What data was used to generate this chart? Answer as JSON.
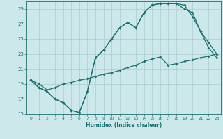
{
  "title": "",
  "xlabel": "Humidex (Indice chaleur)",
  "bg_color": "#cce8ea",
  "grid_color": "#aacccc",
  "line_color": "#1a7070",
  "xlim": [
    -0.5,
    23.5
  ],
  "ylim": [
    15,
    30
  ],
  "yticks": [
    15,
    17,
    19,
    21,
    23,
    25,
    27,
    29
  ],
  "xticks": [
    0,
    1,
    2,
    3,
    4,
    5,
    6,
    7,
    8,
    9,
    10,
    11,
    12,
    13,
    14,
    15,
    16,
    17,
    18,
    19,
    20,
    21,
    22,
    23
  ],
  "line1_x": [
    0,
    1,
    2,
    3,
    4,
    5,
    6,
    7,
    8,
    9,
    10,
    11,
    12,
    13,
    14,
    15,
    16,
    17,
    18,
    19,
    20,
    21,
    22,
    23
  ],
  "line1_y": [
    19.5,
    18.5,
    18.0,
    17.0,
    16.5,
    15.5,
    15.2,
    18.0,
    22.5,
    23.5,
    25.0,
    26.5,
    27.2,
    26.5,
    28.5,
    29.5,
    29.7,
    29.7,
    29.7,
    29.5,
    28.0,
    26.0,
    23.8,
    22.5
  ],
  "line2_x": [
    0,
    1,
    2,
    3,
    4,
    5,
    6,
    7,
    8,
    9,
    10,
    11,
    12,
    13,
    14,
    15,
    16,
    17,
    18,
    19,
    20,
    21,
    22,
    23
  ],
  "line2_y": [
    19.5,
    18.5,
    18.0,
    17.0,
    16.5,
    15.5,
    15.2,
    18.0,
    22.5,
    23.5,
    25.0,
    26.5,
    27.2,
    26.5,
    28.5,
    29.5,
    29.7,
    29.7,
    29.7,
    29.0,
    28.5,
    26.0,
    24.5,
    23.0
  ],
  "line3_x": [
    0,
    1,
    2,
    3,
    4,
    5,
    6,
    7,
    8,
    9,
    10,
    11,
    12,
    13,
    14,
    15,
    16,
    17,
    18,
    19,
    20,
    21,
    22,
    23
  ],
  "line3_y": [
    19.5,
    19.0,
    18.2,
    18.5,
    19.0,
    19.2,
    19.5,
    19.7,
    20.0,
    20.3,
    20.5,
    20.8,
    21.2,
    21.5,
    22.0,
    22.3,
    22.6,
    21.5,
    21.7,
    22.0,
    22.2,
    22.5,
    22.7,
    23.0
  ]
}
